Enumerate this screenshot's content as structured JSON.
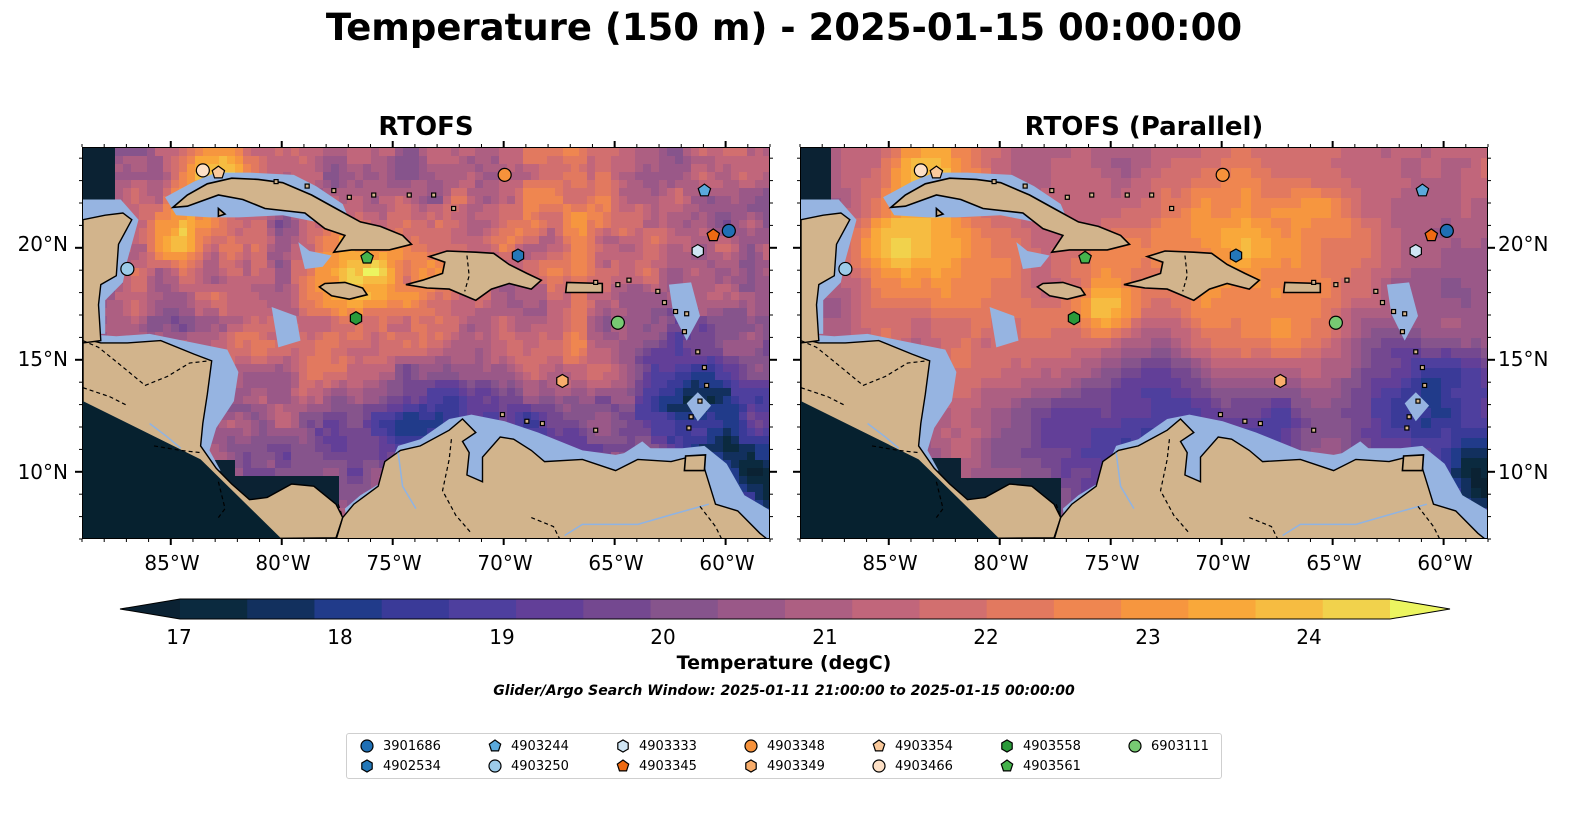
{
  "title": "Temperature (150 m) - 2025-01-15 00:00:00",
  "panels": [
    {
      "title": "RTOFS"
    },
    {
      "title": "RTOFS (Parallel)"
    }
  ],
  "x_ticks": [
    "85°W",
    "80°W",
    "75°W",
    "70°W",
    "65°W",
    "60°W"
  ],
  "y_ticks": [
    "20°N",
    "15°N",
    "10°N"
  ],
  "colorbar": {
    "label": "Temperature (degC)",
    "ticks": [
      "17",
      "18",
      "19",
      "20",
      "21",
      "22",
      "23",
      "24"
    ],
    "range": [
      16.5,
      24.5
    ],
    "colors": [
      "#0b2a3f",
      "#12305e",
      "#213b8a",
      "#3a3a98",
      "#4e3f9e",
      "#623f98",
      "#744890",
      "#86548c",
      "#9a5888",
      "#ad5f82",
      "#c1667b",
      "#d26f6f",
      "#e2795f",
      "#ef8650",
      "#f6963f",
      "#f9a83a",
      "#f6bc41",
      "#f1d24c"
    ],
    "extend_low": "#0b2233",
    "extend_high": "#ecf560"
  },
  "search_window": "Glider/Argo Search Window: 2025-01-11 21:00:00 to 2025-01-15 00:00:00",
  "legend": [
    {
      "label": "3901686",
      "marker": "circle",
      "color": "#1f6fb4"
    },
    {
      "label": "4902534",
      "marker": "hexagon",
      "color": "#2478b8"
    },
    {
      "label": "4903244",
      "marker": "pentagon",
      "color": "#5aa9dc"
    },
    {
      "label": "4903250",
      "marker": "circle",
      "color": "#9ccbe9"
    },
    {
      "label": "4903333",
      "marker": "hexagon",
      "color": "#cfe5f4"
    },
    {
      "label": "4903345",
      "marker": "pentagon",
      "color": "#ee6a12"
    },
    {
      "label": "4903348",
      "marker": "circle",
      "color": "#f6923b"
    },
    {
      "label": "4903349",
      "marker": "hexagon",
      "color": "#f8ad6b"
    },
    {
      "label": "4903354",
      "marker": "pentagon",
      "color": "#fac99b"
    },
    {
      "label": "4903466",
      "marker": "circle",
      "color": "#fde0c6"
    },
    {
      "label": "4903558",
      "marker": "hexagon",
      "color": "#2a9a3a"
    },
    {
      "label": "4903561",
      "marker": "pentagon",
      "color": "#45b34c"
    },
    {
      "label": "6903111",
      "marker": "circle",
      "color": "#77c972"
    }
  ],
  "map_extent": {
    "lon": [
      -89,
      -58
    ],
    "lat": [
      7,
      24.5
    ]
  },
  "colors": {
    "land": "#d2b48c",
    "shelf": "#96b4e1",
    "coast": "#000000"
  },
  "floats": [
    {
      "id": "4903466",
      "lon": -83.6,
      "lat": 23.5
    },
    {
      "id": "4903354",
      "lon": -82.9,
      "lat": 23.4
    },
    {
      "id": "4903348",
      "lon": -70.0,
      "lat": 23.3
    },
    {
      "id": "4903244",
      "lon": -61.0,
      "lat": 22.6
    },
    {
      "id": "3901686",
      "lon": -59.9,
      "lat": 20.8
    },
    {
      "id": "4903345",
      "lon": -60.6,
      "lat": 20.6
    },
    {
      "id": "4903333",
      "lon": -61.3,
      "lat": 19.9
    },
    {
      "id": "4902534",
      "lon": -69.4,
      "lat": 19.7
    },
    {
      "id": "4903561",
      "lon": -76.2,
      "lat": 19.6
    },
    {
      "id": "4903250",
      "lon": -87.0,
      "lat": 19.1
    },
    {
      "id": "4903558",
      "lon": -76.7,
      "lat": 16.9
    },
    {
      "id": "6903111",
      "lon": -64.9,
      "lat": 16.7
    },
    {
      "id": "4903349",
      "lon": -67.4,
      "lat": 14.1
    }
  ]
}
